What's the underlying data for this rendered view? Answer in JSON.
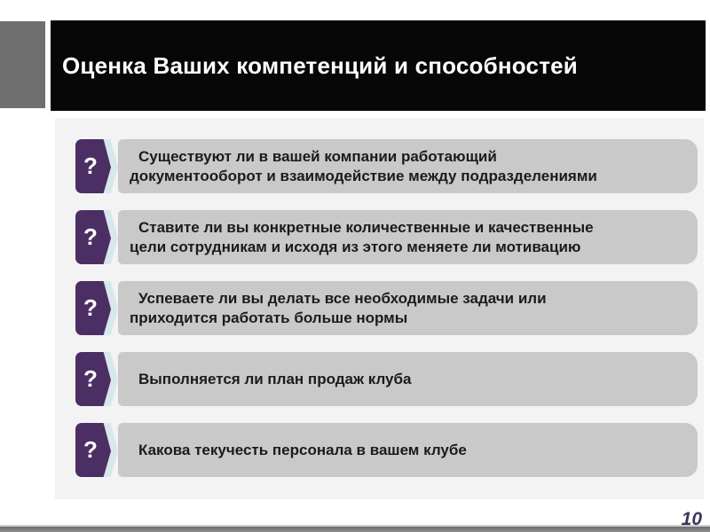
{
  "slide": {
    "title": "Оценка Ваших компетенций и способностей",
    "page_number": "10",
    "badge_glyph": "?",
    "questions": [
      {
        "text": "Существуют ли в вашей компании работающий\nдокументооборот и взаимодействие между подразделениями"
      },
      {
        "text": "Ставите ли вы конкретные количественные и качественные\nцели сотрудникам и исходя из этого меняете ли мотивацию"
      },
      {
        "text": "Успеваете ли вы делать все необходимые задачи или\nприходится работать больше нормы"
      },
      {
        "text": "Выполняется ли план продаж клуба"
      },
      {
        "text": "Какова текучесть персонала в вашем клубе"
      }
    ],
    "colors": {
      "title_bar_bg": "#070707",
      "title_text": "#ffffff",
      "accent_square": "#6f6f6f",
      "panel_bg": "#f3f3f4",
      "bar_bg": "#c9c9ca",
      "bar_text": "#1b1b1b",
      "badge_bg": "#4b2e63",
      "badge_halo": "#d7e7ec",
      "badge_glyph_color": "#ffffff",
      "footer_bar": "#777777",
      "page_number_color": "#3e3458"
    }
  }
}
